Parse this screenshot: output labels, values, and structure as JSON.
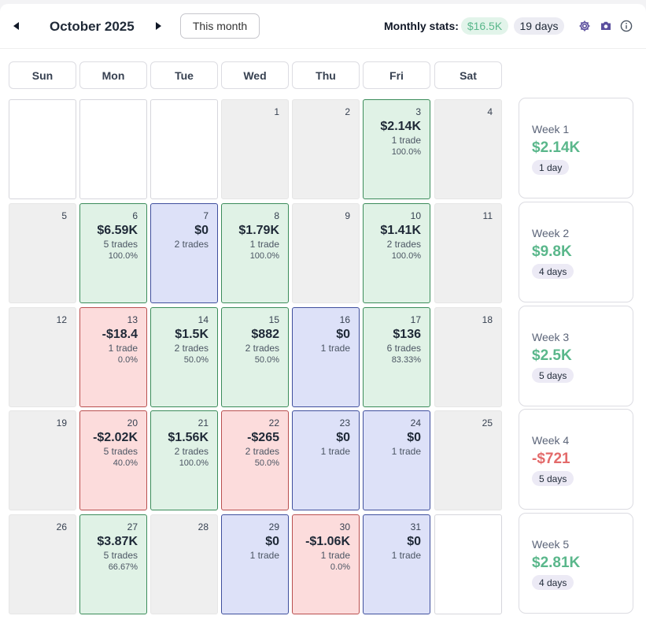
{
  "header": {
    "month": "October 2025",
    "this_month_label": "This month",
    "stats_label": "Monthly stats:",
    "stats_pnl": "$16.5K",
    "stats_days": "19 days",
    "icons": {
      "prev": "caret-left-icon",
      "next": "caret-right-icon",
      "settings": "gear-icon",
      "screenshot": "camera-icon",
      "info": "info-icon"
    }
  },
  "colors": {
    "win": "#e0f2e6",
    "loss": "#fcdcdc",
    "flat": "#dde1f8",
    "positive": "#5ab78b",
    "negative": "#e36a6a"
  },
  "weekdays": [
    "Sun",
    "Mon",
    "Tue",
    "Wed",
    "Thu",
    "Fri",
    "Sat"
  ],
  "days": [
    [
      {
        "kind": "blank"
      },
      {
        "kind": "blank"
      },
      {
        "kind": "blank"
      },
      {
        "kind": "empty",
        "day": "1"
      },
      {
        "kind": "empty",
        "day": "2"
      },
      {
        "kind": "win",
        "day": "3",
        "pnl": "$2.14K",
        "trades": "1 trade",
        "rate": "100.0%"
      },
      {
        "kind": "empty",
        "day": "4"
      }
    ],
    [
      {
        "kind": "empty",
        "day": "5"
      },
      {
        "kind": "win",
        "day": "6",
        "pnl": "$6.59K",
        "trades": "5 trades",
        "rate": "100.0%"
      },
      {
        "kind": "flat",
        "day": "7",
        "pnl": "$0",
        "trades": "2 trades"
      },
      {
        "kind": "win",
        "day": "8",
        "pnl": "$1.79K",
        "trades": "1 trade",
        "rate": "100.0%"
      },
      {
        "kind": "empty",
        "day": "9"
      },
      {
        "kind": "win",
        "day": "10",
        "pnl": "$1.41K",
        "trades": "2 trades",
        "rate": "100.0%"
      },
      {
        "kind": "empty",
        "day": "11"
      }
    ],
    [
      {
        "kind": "empty",
        "day": "12"
      },
      {
        "kind": "loss",
        "day": "13",
        "pnl": "-$18.4",
        "trades": "1 trade",
        "rate": "0.0%"
      },
      {
        "kind": "win",
        "day": "14",
        "pnl": "$1.5K",
        "trades": "2 trades",
        "rate": "50.0%"
      },
      {
        "kind": "win",
        "day": "15",
        "pnl": "$882",
        "trades": "2 trades",
        "rate": "50.0%"
      },
      {
        "kind": "flat",
        "day": "16",
        "pnl": "$0",
        "trades": "1 trade"
      },
      {
        "kind": "win",
        "day": "17",
        "pnl": "$136",
        "trades": "6 trades",
        "rate": "83.33%"
      },
      {
        "kind": "empty",
        "day": "18"
      }
    ],
    [
      {
        "kind": "empty",
        "day": "19"
      },
      {
        "kind": "loss",
        "day": "20",
        "pnl": "-$2.02K",
        "trades": "5 trades",
        "rate": "40.0%"
      },
      {
        "kind": "win",
        "day": "21",
        "pnl": "$1.56K",
        "trades": "2 trades",
        "rate": "100.0%"
      },
      {
        "kind": "loss",
        "day": "22",
        "pnl": "-$265",
        "trades": "2 trades",
        "rate": "50.0%"
      },
      {
        "kind": "flat",
        "day": "23",
        "pnl": "$0",
        "trades": "1 trade"
      },
      {
        "kind": "flat",
        "day": "24",
        "pnl": "$0",
        "trades": "1 trade"
      },
      {
        "kind": "empty",
        "day": "25"
      }
    ],
    [
      {
        "kind": "empty",
        "day": "26"
      },
      {
        "kind": "win",
        "day": "27",
        "pnl": "$3.87K",
        "trades": "5 trades",
        "rate": "66.67%"
      },
      {
        "kind": "empty",
        "day": "28"
      },
      {
        "kind": "flat",
        "day": "29",
        "pnl": "$0",
        "trades": "1 trade"
      },
      {
        "kind": "loss",
        "day": "30",
        "pnl": "-$1.06K",
        "trades": "1 trade",
        "rate": "0.0%"
      },
      {
        "kind": "flat",
        "day": "31",
        "pnl": "$0",
        "trades": "1 trade"
      },
      {
        "kind": "blank"
      }
    ]
  ],
  "weeks": [
    {
      "label": "Week 1",
      "pnl": "$2.14K",
      "days": "1 day",
      "sign": "pos"
    },
    {
      "label": "Week 2",
      "pnl": "$9.8K",
      "days": "4 days",
      "sign": "pos"
    },
    {
      "label": "Week 3",
      "pnl": "$2.5K",
      "days": "5 days",
      "sign": "pos"
    },
    {
      "label": "Week 4",
      "pnl": "-$721",
      "days": "5 days",
      "sign": "neg"
    },
    {
      "label": "Week 5",
      "pnl": "$2.81K",
      "days": "4 days",
      "sign": "pos"
    }
  ]
}
